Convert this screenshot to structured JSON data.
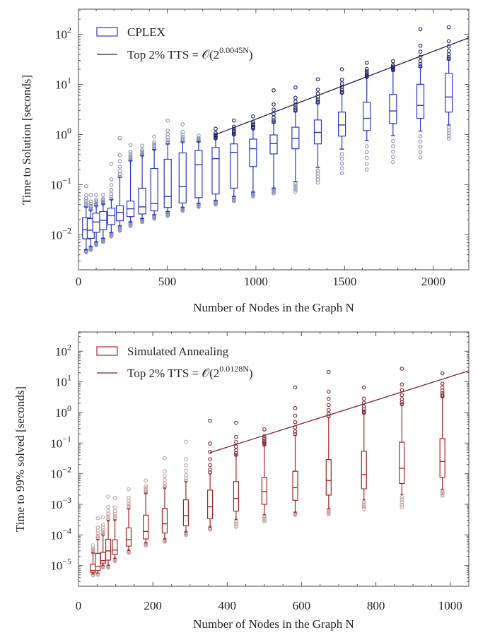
{
  "chart_data": [
    {
      "type": "box",
      "ylabel": "Time to Solution [seconds]",
      "xlabel": "Number of Nodes in the Graph N",
      "xlim": [
        0,
        2200
      ],
      "ylim": [
        0.002,
        316
      ],
      "yscale": "log",
      "xticks": [
        0,
        500,
        1000,
        1500,
        2000
      ],
      "xtick_labels": [
        "0",
        "500",
        "1000",
        "1500",
        "2000"
      ],
      "yticks_exponents": [
        -2,
        -1,
        0,
        1,
        2
      ],
      "ytick_base": "10",
      "grid": false,
      "legend_position": "top-left",
      "colors": {
        "box": "#2b36cc",
        "fit": "#1b1d52",
        "outlier_high": "#1b1d52",
        "outlier_low": "#8d91b3"
      },
      "legend": {
        "box_label": "CPLEX",
        "fit_prefix": "Top 2% TTS = 𝒪(2",
        "fit_exponent": "0.0045N",
        "fit_suffix": ")"
      },
      "fit": {
        "base": 2,
        "exponent_coefficient": 0.0045,
        "x_range": [
          773,
          2200
        ],
        "y_range": [
          1.0,
          85
        ]
      },
      "columns": [
        "N",
        "whisker_low",
        "q1",
        "median",
        "q3",
        "whisker_high",
        "outlier_min",
        "outlier_max"
      ],
      "boxes": [
        [
          43,
          0.005,
          0.0083,
          0.0126,
          0.022,
          0.036,
          0.0045,
          0.093
        ],
        [
          69,
          0.0058,
          0.0085,
          0.0123,
          0.021,
          0.031,
          0.005,
          0.062
        ],
        [
          100,
          0.0072,
          0.0112,
          0.018,
          0.027,
          0.038,
          0.0062,
          0.062
        ],
        [
          139,
          0.0085,
          0.0126,
          0.0195,
          0.029,
          0.041,
          0.0072,
          0.063
        ],
        [
          185,
          0.011,
          0.016,
          0.024,
          0.034,
          0.05,
          0.0093,
          0.26
        ],
        [
          233,
          0.015,
          0.019,
          0.028,
          0.038,
          0.14,
          0.012,
          0.85
        ],
        [
          293,
          0.018,
          0.023,
          0.033,
          0.047,
          0.3,
          0.015,
          0.62
        ],
        [
          359,
          0.021,
          0.026,
          0.036,
          0.085,
          0.38,
          0.018,
          0.6
        ],
        [
          427,
          0.025,
          0.03,
          0.042,
          0.21,
          0.5,
          0.021,
          0.91
        ],
        [
          503,
          0.029,
          0.035,
          0.058,
          0.32,
          0.65,
          0.024,
          1.9
        ],
        [
          587,
          0.035,
          0.043,
          0.091,
          0.43,
          0.71,
          0.03,
          1.6
        ],
        [
          677,
          0.042,
          0.055,
          0.25,
          0.48,
          0.72,
          0.036,
          0.95
        ],
        [
          773,
          0.048,
          0.065,
          0.33,
          0.55,
          0.83,
          0.04,
          1.3
        ],
        [
          876,
          0.058,
          0.085,
          0.44,
          0.65,
          0.98,
          0.047,
          1.9
        ],
        [
          984,
          0.071,
          0.23,
          0.52,
          0.81,
          1.3,
          0.058,
          2.3
        ],
        [
          1100,
          0.085,
          0.41,
          0.66,
          0.98,
          1.7,
          0.067,
          7.6
        ],
        [
          1223,
          0.115,
          0.52,
          0.83,
          1.4,
          2.9,
          0.072,
          8.7
        ],
        [
          1349,
          0.22,
          0.65,
          1.1,
          1.95,
          4.2,
          0.11,
          12.6
        ],
        [
          1485,
          0.51,
          0.93,
          1.55,
          2.8,
          6.6,
          0.17,
          20
        ],
        [
          1625,
          0.76,
          1.2,
          2.1,
          4.4,
          13.8,
          0.2,
          27
        ],
        [
          1773,
          0.95,
          1.66,
          2.95,
          6.3,
          19,
          0.28,
          29
        ],
        [
          1927,
          1.17,
          2.1,
          3.8,
          10,
          22,
          0.35,
          126
        ],
        [
          2087,
          1.55,
          2.8,
          5.6,
          16.6,
          31,
          0.83,
          138
        ]
      ]
    },
    {
      "type": "box",
      "ylabel": "Time to 99% solved [seconds]",
      "xlabel": "Number of Nodes in the Graph N",
      "xlim": [
        0,
        1050
      ],
      "ylim": [
        2.1e-06,
        427
      ],
      "yscale": "log",
      "xticks": [
        0,
        200,
        400,
        600,
        800,
        1000
      ],
      "xtick_labels": [
        "0",
        "200",
        "400",
        "600",
        "800",
        "1000"
      ],
      "yticks_exponents": [
        -5,
        -4,
        -3,
        -2,
        -1,
        0,
        1,
        2
      ],
      "ytick_base": "10",
      "grid": false,
      "legend_position": "top-left",
      "colors": {
        "box": "#a32424",
        "fit": "#7a2230",
        "outlier_high": "#7a2230",
        "outlier_low": "#c4a4a6"
      },
      "legend": {
        "box_label": "Simulated Annealing",
        "fit_prefix": "Top 2% TTS = 𝒪(2",
        "fit_exponent": "0.0128N",
        "fit_suffix": ")"
      },
      "fit": {
        "base": 2,
        "exponent_coefficient": 0.0128,
        "x_range": [
          354,
          1050
        ],
        "y_range": [
          0.049,
          23
        ]
      },
      "columns": [
        "N",
        "whisker_low",
        "q1",
        "median",
        "q3",
        "whisker_high",
        "outlier_min",
        "outlier_max"
      ],
      "boxes": [
        [
          39,
          5.2e-06,
          6e-06,
          6.9e-06,
          1.1e-05,
          2.6e-05,
          4.8e-06,
          4.6e-05
        ],
        [
          52,
          5.5e-06,
          6.9e-06,
          9.3e-06,
          2.5e-05,
          7.2e-05,
          5e-06,
          0.00035
        ],
        [
          66,
          1e-05,
          1.2e-05,
          1.45e-05,
          2.7e-05,
          0.0001,
          8.5e-06,
          0.00038
        ],
        [
          80,
          1e-05,
          1.5e-05,
          3e-05,
          7.2e-05,
          0.0003,
          8.5e-06,
          0.0018
        ],
        [
          98,
          1.7e-05,
          2.3e-05,
          3.2e-05,
          6.9e-05,
          0.00031,
          1.4e-05,
          0.0016
        ],
        [
          135,
          3.1e-05,
          4.3e-05,
          6.9e-05,
          0.00017,
          0.00072,
          2.6e-05,
          0.0031
        ],
        [
          181,
          5.5e-05,
          7.4e-05,
          0.00013,
          0.00044,
          0.0023,
          4.5e-05,
          0.006
        ],
        [
          232,
          7.4e-05,
          0.000115,
          0.00023,
          0.00074,
          0.0034,
          6e-05,
          0.032
        ],
        [
          289,
          0.000126,
          0.0002,
          0.00043,
          0.0014,
          0.0055,
          0.0001,
          0.11
        ],
        [
          354,
          0.00018,
          0.00034,
          0.00083,
          0.0029,
          0.01,
          0.00015,
          0.54
        ],
        [
          424,
          0.00032,
          0.0006,
          0.00155,
          0.0055,
          0.039,
          0.00018,
          0.46
        ],
        [
          500,
          0.00046,
          0.001,
          0.0026,
          0.0076,
          0.087,
          0.00028,
          0.28
        ],
        [
          583,
          0.00055,
          0.00135,
          0.0035,
          0.012,
          0.18,
          0.00045,
          6.6
        ],
        [
          673,
          0.00072,
          0.002,
          0.006,
          0.029,
          0.69,
          0.00048,
          21
        ],
        [
          768,
          0.0014,
          0.0032,
          0.0093,
          0.054,
          0.93,
          0.0007,
          6.6
        ],
        [
          870,
          0.0021,
          0.0048,
          0.015,
          0.107,
          1.74,
          0.0008,
          27
        ],
        [
          979,
          0.0031,
          0.0076,
          0.025,
          0.14,
          3.2,
          0.0019,
          19
        ]
      ]
    }
  ]
}
